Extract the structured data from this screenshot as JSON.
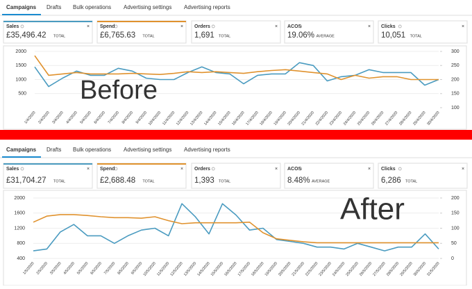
{
  "panels": [
    {
      "tabs": [
        "Campaigns",
        "Drafts",
        "Bulk operations",
        "Advertising settings",
        "Advertising reports"
      ],
      "metrics": [
        {
          "label": "Sales",
          "value": "£35,496.42",
          "suffix": "TOTAL"
        },
        {
          "label": "Spend",
          "value": "£6,765.63",
          "suffix": "TOTAL"
        },
        {
          "label": "Orders",
          "value": "1,691",
          "suffix": "TOTAL"
        },
        {
          "label": "ACOS",
          "value": "19.06%",
          "suffix": "AVERAGE"
        },
        {
          "label": "Clicks",
          "value": "10,051",
          "suffix": "TOTAL"
        }
      ],
      "overlay": "Before"
    },
    {
      "tabs": [
        "Campaigns",
        "Drafts",
        "Bulk operations",
        "Advertising settings",
        "Advertising reports"
      ],
      "metrics": [
        {
          "label": "Sales",
          "value": "£31,704.27",
          "suffix": "TOTAL"
        },
        {
          "label": "Spend",
          "value": "£2,688.48",
          "suffix": "TOTAL"
        },
        {
          "label": "Orders",
          "value": "1,393",
          "suffix": "TOTAL"
        },
        {
          "label": "ACOS",
          "value": "8.48%",
          "suffix": "AVERAGE"
        },
        {
          "label": "Clicks",
          "value": "6,286",
          "suffix": "TOTAL"
        }
      ],
      "overlay": "After"
    }
  ],
  "chart_data": [
    {
      "type": "line",
      "categories": [
        "1/4/2020",
        "2/4/2020",
        "3/4/2020",
        "4/4/2020",
        "5/4/2020",
        "6/4/2020",
        "7/4/2020",
        "8/4/2020",
        "9/4/2020",
        "10/4/2020",
        "11/4/2020",
        "12/4/2020",
        "13/4/2020",
        "14/4/2020",
        "15/4/2020",
        "16/4/2020",
        "17/4/2020",
        "18/4/2020",
        "19/4/2020",
        "20/4/2020",
        "21/4/2020",
        "22/4/2020",
        "23/4/2020",
        "24/4/2020",
        "25/4/2020",
        "26/4/2020",
        "27/4/2020",
        "28/4/2020",
        "29/4/2020",
        "30/4/2020"
      ],
      "series": [
        {
          "color": "#4a9bc0",
          "values": [
            1450,
            750,
            1050,
            1300,
            1150,
            1150,
            1400,
            1300,
            1050,
            1000,
            1000,
            1250,
            1450,
            1250,
            1200,
            850,
            1150,
            1200,
            1200,
            1600,
            1500,
            950,
            1100,
            1150,
            1350,
            1250,
            1250,
            1250,
            800,
            1000
          ]
        },
        {
          "color": "#e0922e",
          "axis": "y2",
          "values": [
            285,
            215,
            220,
            225,
            220,
            220,
            220,
            222,
            220,
            218,
            222,
            228,
            225,
            228,
            225,
            222,
            228,
            232,
            235,
            230,
            225,
            220,
            200,
            215,
            205,
            210,
            210,
            200,
            200,
            200
          ]
        }
      ],
      "ylim": [
        0,
        2000
      ],
      "yticks": [
        500,
        1000,
        1500,
        2000
      ],
      "y2lim": [
        100,
        300
      ],
      "y2ticks": [
        100,
        150,
        200,
        250,
        300
      ],
      "grid": true
    },
    {
      "type": "line",
      "categories": [
        "1/5/2020",
        "2/5/2020",
        "3/5/2020",
        "4/5/2020",
        "5/5/2020",
        "6/5/2020",
        "7/5/2020",
        "8/5/2020",
        "9/5/2020",
        "10/5/2020",
        "11/5/2020",
        "12/5/2020",
        "13/5/2020",
        "14/5/2020",
        "15/5/2020",
        "16/5/2020",
        "17/5/2020",
        "18/5/2020",
        "19/5/2020",
        "20/5/2020",
        "21/5/2020",
        "22/5/2020",
        "23/5/2020",
        "24/5/2020",
        "25/5/2020",
        "26/5/2020",
        "27/5/2020",
        "28/5/2020",
        "29/5/2020",
        "30/5/2020",
        "31/5/2020"
      ],
      "series": [
        {
          "color": "#4a9bc0",
          "values": [
            600,
            650,
            1100,
            1300,
            1000,
            1000,
            800,
            1000,
            1150,
            1200,
            1000,
            1850,
            1500,
            1050,
            1850,
            1550,
            1150,
            1200,
            900,
            850,
            800,
            700,
            700,
            650,
            800,
            700,
            600,
            700,
            700,
            1050,
            650
          ]
        },
        {
          "color": "#e0922e",
          "axis": "y2",
          "values": [
            120,
            140,
            145,
            145,
            142,
            138,
            135,
            135,
            133,
            138,
            125,
            115,
            118,
            118,
            118,
            118,
            120,
            85,
            65,
            60,
            55,
            52,
            52,
            52,
            52,
            52,
            52,
            52,
            52,
            52,
            52
          ]
        }
      ],
      "ylim": [
        400,
        2000
      ],
      "yticks": [
        400,
        800,
        1200,
        1600,
        2000
      ],
      "y2lim": [
        0,
        200
      ],
      "y2ticks": [
        0,
        50,
        100,
        150,
        200
      ],
      "grid": true
    }
  ]
}
